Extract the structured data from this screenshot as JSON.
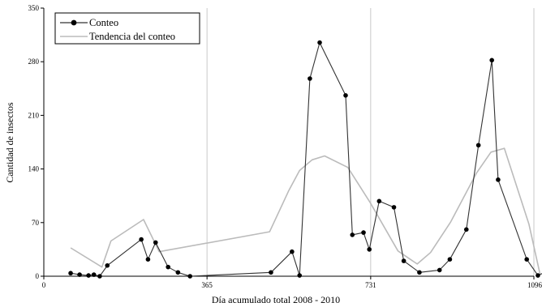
{
  "chart_data": {
    "type": "line",
    "xlabel": "Día acumulado total 2008 - 2010",
    "ylabel": "Cantidad de insectos",
    "xlim": [
      0,
      1096
    ],
    "ylim": [
      0,
      350
    ],
    "x_ticks": [
      0,
      365,
      731,
      1096
    ],
    "x_tick_labels": [
      "0",
      "365",
      "731",
      "1096"
    ],
    "y_ticks": [
      0,
      70,
      140,
      210,
      280,
      350
    ],
    "y_tick_labels": [
      "0",
      "70",
      "140",
      "210",
      "280",
      "350"
    ],
    "grid": "vertical lines at x ticks",
    "legend": {
      "placement": "top-left",
      "entries": [
        "Conteo",
        "Tendencia del conteo"
      ]
    },
    "series": [
      {
        "name": "Conteo",
        "style": "line-with-markers",
        "color": "#333333",
        "points": [
          [
            60,
            4
          ],
          [
            80,
            2
          ],
          [
            100,
            1
          ],
          [
            112,
            2
          ],
          [
            125,
            0
          ],
          [
            142,
            14
          ],
          [
            218,
            48
          ],
          [
            233,
            22
          ],
          [
            250,
            44
          ],
          [
            278,
            12
          ],
          [
            300,
            5
          ],
          [
            327,
            0
          ],
          [
            508,
            5
          ],
          [
            555,
            32
          ],
          [
            572,
            1
          ],
          [
            595,
            258
          ],
          [
            617,
            305
          ],
          [
            675,
            236
          ],
          [
            690,
            54
          ],
          [
            715,
            57
          ],
          [
            728,
            35
          ],
          [
            750,
            98
          ],
          [
            783,
            90
          ],
          [
            805,
            20
          ],
          [
            840,
            5
          ],
          [
            885,
            8
          ],
          [
            908,
            22
          ],
          [
            945,
            61
          ],
          [
            972,
            171
          ],
          [
            1002,
            282
          ],
          [
            1016,
            126
          ],
          [
            1080,
            22
          ],
          [
            1105,
            1
          ],
          [
            1120,
            5
          ]
        ]
      },
      {
        "name": "Tendencia del conteo",
        "style": "line",
        "color": "#bbbbbb",
        "points": [
          [
            60,
            37
          ],
          [
            130,
            12
          ],
          [
            150,
            46
          ],
          [
            223,
            74
          ],
          [
            258,
            32
          ],
          [
            505,
            58
          ],
          [
            548,
            112
          ],
          [
            572,
            138
          ],
          [
            600,
            152
          ],
          [
            628,
            157
          ],
          [
            680,
            142
          ],
          [
            730,
            96
          ],
          [
            792,
            33
          ],
          [
            835,
            16
          ],
          [
            865,
            31
          ],
          [
            910,
            71
          ],
          [
            968,
            135
          ],
          [
            1000,
            162
          ],
          [
            1030,
            167
          ],
          [
            1085,
            68
          ],
          [
            1110,
            2
          ]
        ]
      }
    ]
  }
}
